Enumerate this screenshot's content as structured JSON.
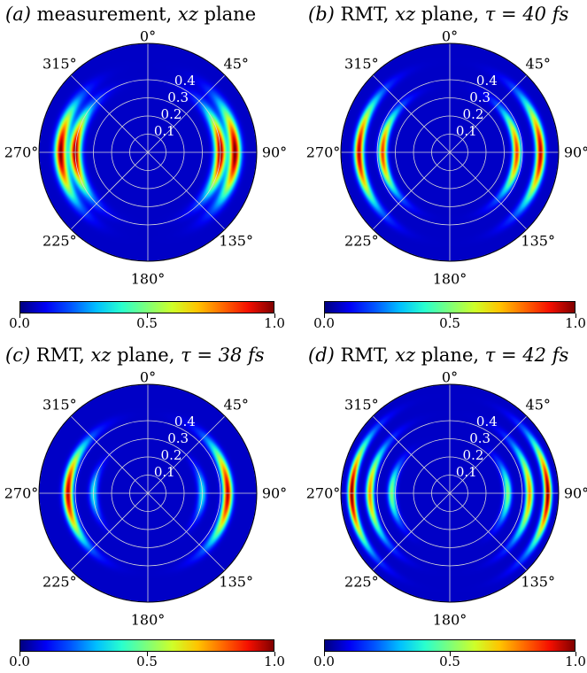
{
  "colormap": [
    "#000080",
    "#0000f5",
    "#0055ff",
    "#00bfff",
    "#29ffce",
    "#7dff7a",
    "#ceff29",
    "#ffc400",
    "#ff6800",
    "#f50f00",
    "#800000"
  ],
  "angle_labels": [
    "0°",
    "45°",
    "90°",
    "135°",
    "180°",
    "225°",
    "270°",
    "315°"
  ],
  "radial_labels": [
    "0.1",
    "0.2",
    "0.3",
    "0.4"
  ],
  "colorbar": {
    "ticks": [
      "0.0",
      "0.5",
      "1.0"
    ],
    "min": 0.0,
    "max": 1.0
  },
  "chart_data": [
    {
      "type": "heatmap",
      "label": "(a)",
      "title_main": "measurement,",
      "title_math": "xz",
      "title_rest": "plane",
      "radial_grid": [
        0.1,
        0.2,
        0.3,
        0.4
      ],
      "angular_grid_deg": [
        0,
        45,
        90,
        135,
        180,
        225,
        270,
        315
      ],
      "rlim": [
        0,
        0.6
      ],
      "features": [
        {
          "angle_deg": 90,
          "radius": 0.4,
          "width": 0.03,
          "spread_deg": 32,
          "intensity": 0.95
        },
        {
          "angle_deg": 90,
          "radius": 0.48,
          "width": 0.03,
          "spread_deg": 30,
          "intensity": 0.95
        },
        {
          "angle_deg": 270,
          "radius": 0.4,
          "width": 0.03,
          "spread_deg": 32,
          "intensity": 0.95
        },
        {
          "angle_deg": 270,
          "radius": 0.48,
          "width": 0.03,
          "spread_deg": 30,
          "intensity": 0.95
        }
      ]
    },
    {
      "type": "heatmap",
      "label": "(b)",
      "title_main": "RMT,",
      "title_math": "xz",
      "title_rest": "plane,",
      "tau": "τ = 40 fs",
      "radial_grid": [
        0.1,
        0.2,
        0.3,
        0.4
      ],
      "angular_grid_deg": [
        0,
        45,
        90,
        135,
        180,
        225,
        270,
        315
      ],
      "rlim": [
        0,
        0.6
      ],
      "features": [
        {
          "angle_deg": 90,
          "radius": 0.37,
          "width": 0.022,
          "spread_deg": 34,
          "intensity": 0.8
        },
        {
          "angle_deg": 90,
          "radius": 0.5,
          "width": 0.024,
          "spread_deg": 32,
          "intensity": 0.9
        },
        {
          "angle_deg": 270,
          "radius": 0.37,
          "width": 0.022,
          "spread_deg": 34,
          "intensity": 0.8
        },
        {
          "angle_deg": 270,
          "radius": 0.5,
          "width": 0.024,
          "spread_deg": 32,
          "intensity": 0.9
        }
      ]
    },
    {
      "type": "heatmap",
      "label": "(c)",
      "title_main": "RMT,",
      "title_math": "xz",
      "title_rest": "plane,",
      "tau": "τ = 38 fs",
      "radial_grid": [
        0.1,
        0.2,
        0.3,
        0.4
      ],
      "angular_grid_deg": [
        0,
        45,
        90,
        135,
        180,
        225,
        270,
        315
      ],
      "rlim": [
        0,
        0.6
      ],
      "features": [
        {
          "angle_deg": 90,
          "radius": 0.3,
          "width": 0.022,
          "spread_deg": 26,
          "intensity": 0.3
        },
        {
          "angle_deg": 90,
          "radius": 0.44,
          "width": 0.025,
          "spread_deg": 34,
          "intensity": 0.9
        },
        {
          "angle_deg": 270,
          "radius": 0.3,
          "width": 0.022,
          "spread_deg": 26,
          "intensity": 0.3
        },
        {
          "angle_deg": 270,
          "radius": 0.44,
          "width": 0.025,
          "spread_deg": 34,
          "intensity": 0.9
        }
      ]
    },
    {
      "type": "heatmap",
      "label": "(d)",
      "title_main": "RMT,",
      "title_math": "xz",
      "title_rest": "plane,",
      "tau": "τ = 42 fs",
      "radial_grid": [
        0.1,
        0.2,
        0.3,
        0.4
      ],
      "angular_grid_deg": [
        0,
        45,
        90,
        135,
        180,
        225,
        270,
        315
      ],
      "rlim": [
        0,
        0.6
      ],
      "features": [
        {
          "angle_deg": 90,
          "radius": 0.32,
          "width": 0.02,
          "spread_deg": 28,
          "intensity": 0.45
        },
        {
          "angle_deg": 90,
          "radius": 0.44,
          "width": 0.02,
          "spread_deg": 32,
          "intensity": 0.7
        },
        {
          "angle_deg": 90,
          "radius": 0.54,
          "width": 0.02,
          "spread_deg": 30,
          "intensity": 0.95
        },
        {
          "angle_deg": 270,
          "radius": 0.32,
          "width": 0.02,
          "spread_deg": 28,
          "intensity": 0.45
        },
        {
          "angle_deg": 270,
          "radius": 0.44,
          "width": 0.02,
          "spread_deg": 32,
          "intensity": 0.7
        },
        {
          "angle_deg": 270,
          "radius": 0.54,
          "width": 0.02,
          "spread_deg": 30,
          "intensity": 0.95
        }
      ]
    }
  ]
}
